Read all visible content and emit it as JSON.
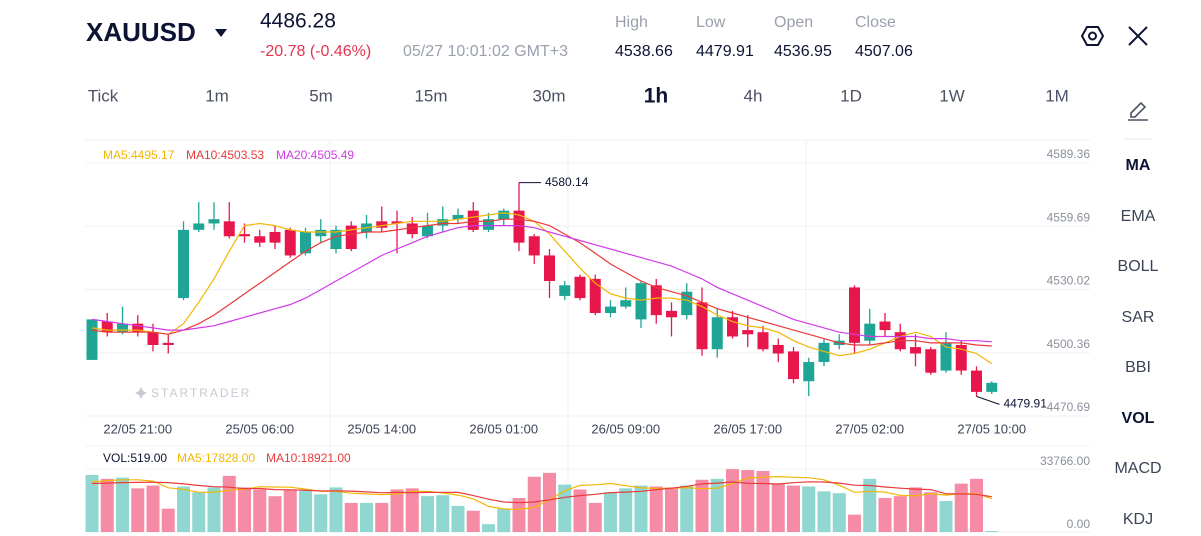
{
  "header": {
    "symbol": "XAUUSD",
    "price": "4486.28",
    "change": "-20.78 (-0.46%)",
    "time": "05/27 10:01:02 GMT+3",
    "stats": [
      {
        "label": "High",
        "value": "4538.66"
      },
      {
        "label": "Low",
        "value": "4479.91"
      },
      {
        "label": "Open",
        "value": "4536.95"
      },
      {
        "label": "Close",
        "value": "4507.06"
      }
    ]
  },
  "timeframes": [
    "Tick",
    "1m",
    "5m",
    "15m",
    "30m",
    "1h",
    "4h",
    "1D",
    "1W",
    "1M"
  ],
  "sidebar": [
    "MA",
    "EMA",
    "BOLL",
    "SAR",
    "BBI",
    "VOL",
    "MACD",
    "KDJ"
  ],
  "watermark": "STARTRADER",
  "chart_data": [
    {
      "type": "candlestick",
      "categories": [
        null,
        null,
        null,
        "22/05 21:00",
        null,
        null,
        null,
        null,
        null,
        null,
        null,
        "25/05 06:00",
        null,
        null,
        null,
        null,
        null,
        null,
        null,
        "25/05 14:00",
        null,
        null,
        null,
        null,
        null,
        null,
        null,
        "26/05 01:00",
        null,
        null,
        null,
        null,
        null,
        null,
        null,
        "26/05 09:00",
        null,
        null,
        null,
        null,
        null,
        null,
        null,
        "26/05 17:00",
        null,
        null,
        null,
        null,
        null,
        null,
        null,
        "27/05 02:00",
        null,
        null,
        null,
        null,
        null,
        null,
        null,
        "27/05 10:00"
      ],
      "open": [
        4497,
        4515,
        4510,
        4514,
        4510,
        4505,
        4526,
        4558,
        4561,
        4562,
        4556,
        4555,
        4557,
        4558,
        4547,
        4555,
        4549,
        4560,
        4557,
        4562,
        4562,
        4561,
        4555,
        4560,
        4563,
        4567,
        4558,
        4563,
        4567,
        4555,
        4546,
        4527,
        4536,
        4535,
        4519,
        4522,
        4516,
        4532,
        4520,
        4518,
        4524,
        4502,
        4517,
        4511,
        4510,
        4504,
        4501,
        4487,
        4496,
        4504,
        4531,
        4506,
        4515,
        4510,
        4503,
        4502,
        4492,
        4504,
        4492,
        4482
      ],
      "high": [
        4516,
        4519,
        4522,
        4518,
        4514,
        4509,
        4562,
        4571,
        4571,
        4571,
        4561,
        4558,
        4560,
        4559,
        4559,
        4563,
        4560,
        4562,
        4565,
        4569,
        4567,
        4564,
        4566,
        4569,
        4568,
        4571,
        4566,
        4568,
        4580.14,
        4556,
        4549,
        4534,
        4537,
        4537,
        4525,
        4531,
        4534,
        4535,
        4524,
        4533,
        4531,
        4521,
        4520,
        4518,
        4513,
        4507,
        4503,
        4498,
        4507,
        4509,
        4532,
        4521,
        4519,
        4514,
        4509,
        4503,
        4510,
        4506,
        4494,
        4487
      ],
      "low": [
        4497,
        4508,
        4509,
        4508,
        4501,
        4500,
        4525,
        4557,
        4558,
        4554,
        4552,
        4550,
        4549,
        4545,
        4546,
        4552,
        4547,
        4548,
        4554,
        4557,
        4547,
        4554,
        4554,
        4557,
        4561,
        4557,
        4557,
        4560,
        4548,
        4542,
        4526,
        4525,
        4525,
        4518,
        4517,
        4521,
        4512,
        4514,
        4508,
        4516,
        4499,
        4498,
        4507,
        4503,
        4501,
        4496,
        4486,
        4480,
        4494,
        4502,
        4500,
        4504,
        4508,
        4501,
        4494,
        4490,
        4491,
        4490,
        4479.91,
        4481
      ],
      "close": [
        4516,
        4510,
        4514,
        4510,
        4504,
        4504,
        4558,
        4561,
        4563,
        4555,
        4555,
        4552,
        4552,
        4546,
        4557,
        4558,
        4558,
        4549,
        4561,
        4559,
        4561,
        4556,
        4560,
        4563,
        4565,
        4558,
        4563,
        4567,
        4552,
        4546,
        4534,
        4532,
        4526,
        4519,
        4522,
        4525,
        4533,
        4518,
        4517,
        4529,
        4502,
        4517,
        4508,
        4509,
        4502,
        4500,
        4488,
        4496,
        4505,
        4506,
        4505,
        4514,
        4511,
        4502,
        4500,
        4491,
        4505,
        4492,
        4482,
        4486.28
      ],
      "up_color": "#1fa595",
      "down_color": "#e8174b",
      "ylim": [
        4470.69,
        4589.36
      ],
      "yticks": [
        4470.69,
        4500.36,
        4530.02,
        4559.69,
        4589.36
      ],
      "grid": true,
      "annotations": [
        4580.14,
        4479.91
      ],
      "series": [
        {
          "name": "MA5:4495.17",
          "color": "#f2b705",
          "values": [
            4512,
            4511,
            4511,
            4511,
            4510,
            4509,
            4514,
            4524,
            4535,
            4548,
            4560,
            4561,
            4560,
            4558,
            4557,
            4557,
            4557,
            4558,
            4559,
            4560,
            4561,
            4562,
            4562,
            4562,
            4563,
            4564,
            4565,
            4566,
            4565,
            4562,
            4556,
            4548,
            4540,
            4533,
            4528,
            4526,
            4525,
            4526,
            4526,
            4525,
            4522,
            4518,
            4515,
            4513,
            4512,
            4510,
            4506,
            4503,
            4501,
            4499,
            4500,
            4502,
            4505,
            4508,
            4510,
            4508,
            4503,
            4502,
            4500,
            4495.17
          ]
        },
        {
          "name": "MA10:4503.53",
          "color": "#ea3a3a",
          "values": [
            4511,
            4510,
            4510,
            4510,
            4510,
            4509,
            4511,
            4514,
            4518,
            4523,
            4528,
            4533,
            4538,
            4543,
            4548,
            4552,
            4555,
            4556,
            4557,
            4557,
            4558,
            4559,
            4560,
            4561,
            4561,
            4562,
            4562,
            4563,
            4563,
            4562,
            4560,
            4556,
            4552,
            4547,
            4542,
            4538,
            4534,
            4531,
            4529,
            4527,
            4524,
            4521,
            4519,
            4517,
            4515,
            4513,
            4511,
            4509,
            4507,
            4505,
            4504,
            4504,
            4505,
            4506,
            4506,
            4505,
            4505,
            4505,
            4504,
            4503.53
          ]
        },
        {
          "name": "MA20:4505.49",
          "color": "#d23ae8",
          "values": [
            4516,
            4515,
            4514,
            4513,
            4512,
            4511,
            4511,
            4512,
            4513,
            4515,
            4517,
            4519,
            4521,
            4523,
            4526,
            4530,
            4534,
            4538,
            4542,
            4546,
            4549,
            4552,
            4555,
            4557,
            4559,
            4560,
            4560,
            4560,
            4560,
            4559,
            4557,
            4555,
            4553,
            4551,
            4549,
            4547,
            4545,
            4543,
            4541,
            4538,
            4535,
            4531,
            4528,
            4525,
            4522,
            4519,
            4516,
            4514,
            4512,
            4510,
            4509,
            4508,
            4508,
            4508,
            4508,
            4507,
            4507,
            4506,
            4506,
            4505.49
          ]
        }
      ]
    },
    {
      "type": "bar",
      "label": "VOL:519.00",
      "up_color": "#8fd7d0",
      "down_color": "#f58ba5",
      "values": [
        30600,
        28500,
        29100,
        23400,
        24900,
        12500,
        24400,
        21300,
        23900,
        30100,
        23900,
        22800,
        19200,
        22800,
        22800,
        20200,
        23900,
        15600,
        15600,
        15600,
        22800,
        23400,
        19200,
        19700,
        14000,
        11400,
        4200,
        12500,
        18200,
        29600,
        31700,
        25400,
        22800,
        15600,
        21300,
        23400,
        24900,
        24400,
        23900,
        24900,
        28000,
        28500,
        33700,
        33200,
        32700,
        25900,
        24900,
        24400,
        21800,
        20800,
        9300,
        28500,
        18200,
        19200,
        23900,
        21300,
        16600,
        25900,
        28500,
        519
      ],
      "ylim": [
        0,
        33766
      ],
      "yticks": [
        {
          "value": 33766,
          "label": "33766.00"
        },
        {
          "value": 0,
          "label": "0.00"
        }
      ],
      "series": [
        {
          "name": "MA5:17828.00",
          "color": "#f2b705",
          "values": [
            27000,
            27500,
            28000,
            28000,
            27300,
            23700,
            22900,
            21300,
            21400,
            22400,
            22900,
            24300,
            24100,
            24000,
            23000,
            21800,
            21800,
            20800,
            20400,
            20000,
            20400,
            21800,
            21800,
            20900,
            19800,
            17800,
            13700,
            12400,
            12100,
            13200,
            17200,
            22100,
            25000,
            25300,
            26000,
            24800,
            23700,
            23400,
            23400,
            23800,
            23200,
            23500,
            26000,
            28900,
            29400,
            29700,
            29300,
            29100,
            28000,
            25100,
            21300,
            21800,
            21400,
            19600,
            19400,
            20600,
            19800,
            20500,
            20600,
            17828
          ]
        },
        {
          "name": "MA10:18921.00",
          "color": "#ea3a3a",
          "values": [
            26000,
            26200,
            26500,
            26600,
            26700,
            26500,
            25800,
            24900,
            24300,
            24000,
            23200,
            23300,
            22700,
            22600,
            22400,
            22000,
            22100,
            21900,
            21500,
            21000,
            21300,
            21100,
            21200,
            21300,
            21200,
            19500,
            17600,
            16100,
            15700,
            16100,
            17200,
            18600,
            19500,
            20200,
            21100,
            21400,
            21800,
            22700,
            23500,
            24500,
            25800,
            26200,
            26800,
            26100,
            26000,
            25700,
            26400,
            26900,
            26800,
            26200,
            25100,
            24900,
            24100,
            23500,
            23000,
            22700,
            20500,
            20400,
            20200,
            18921
          ]
        }
      ]
    }
  ]
}
